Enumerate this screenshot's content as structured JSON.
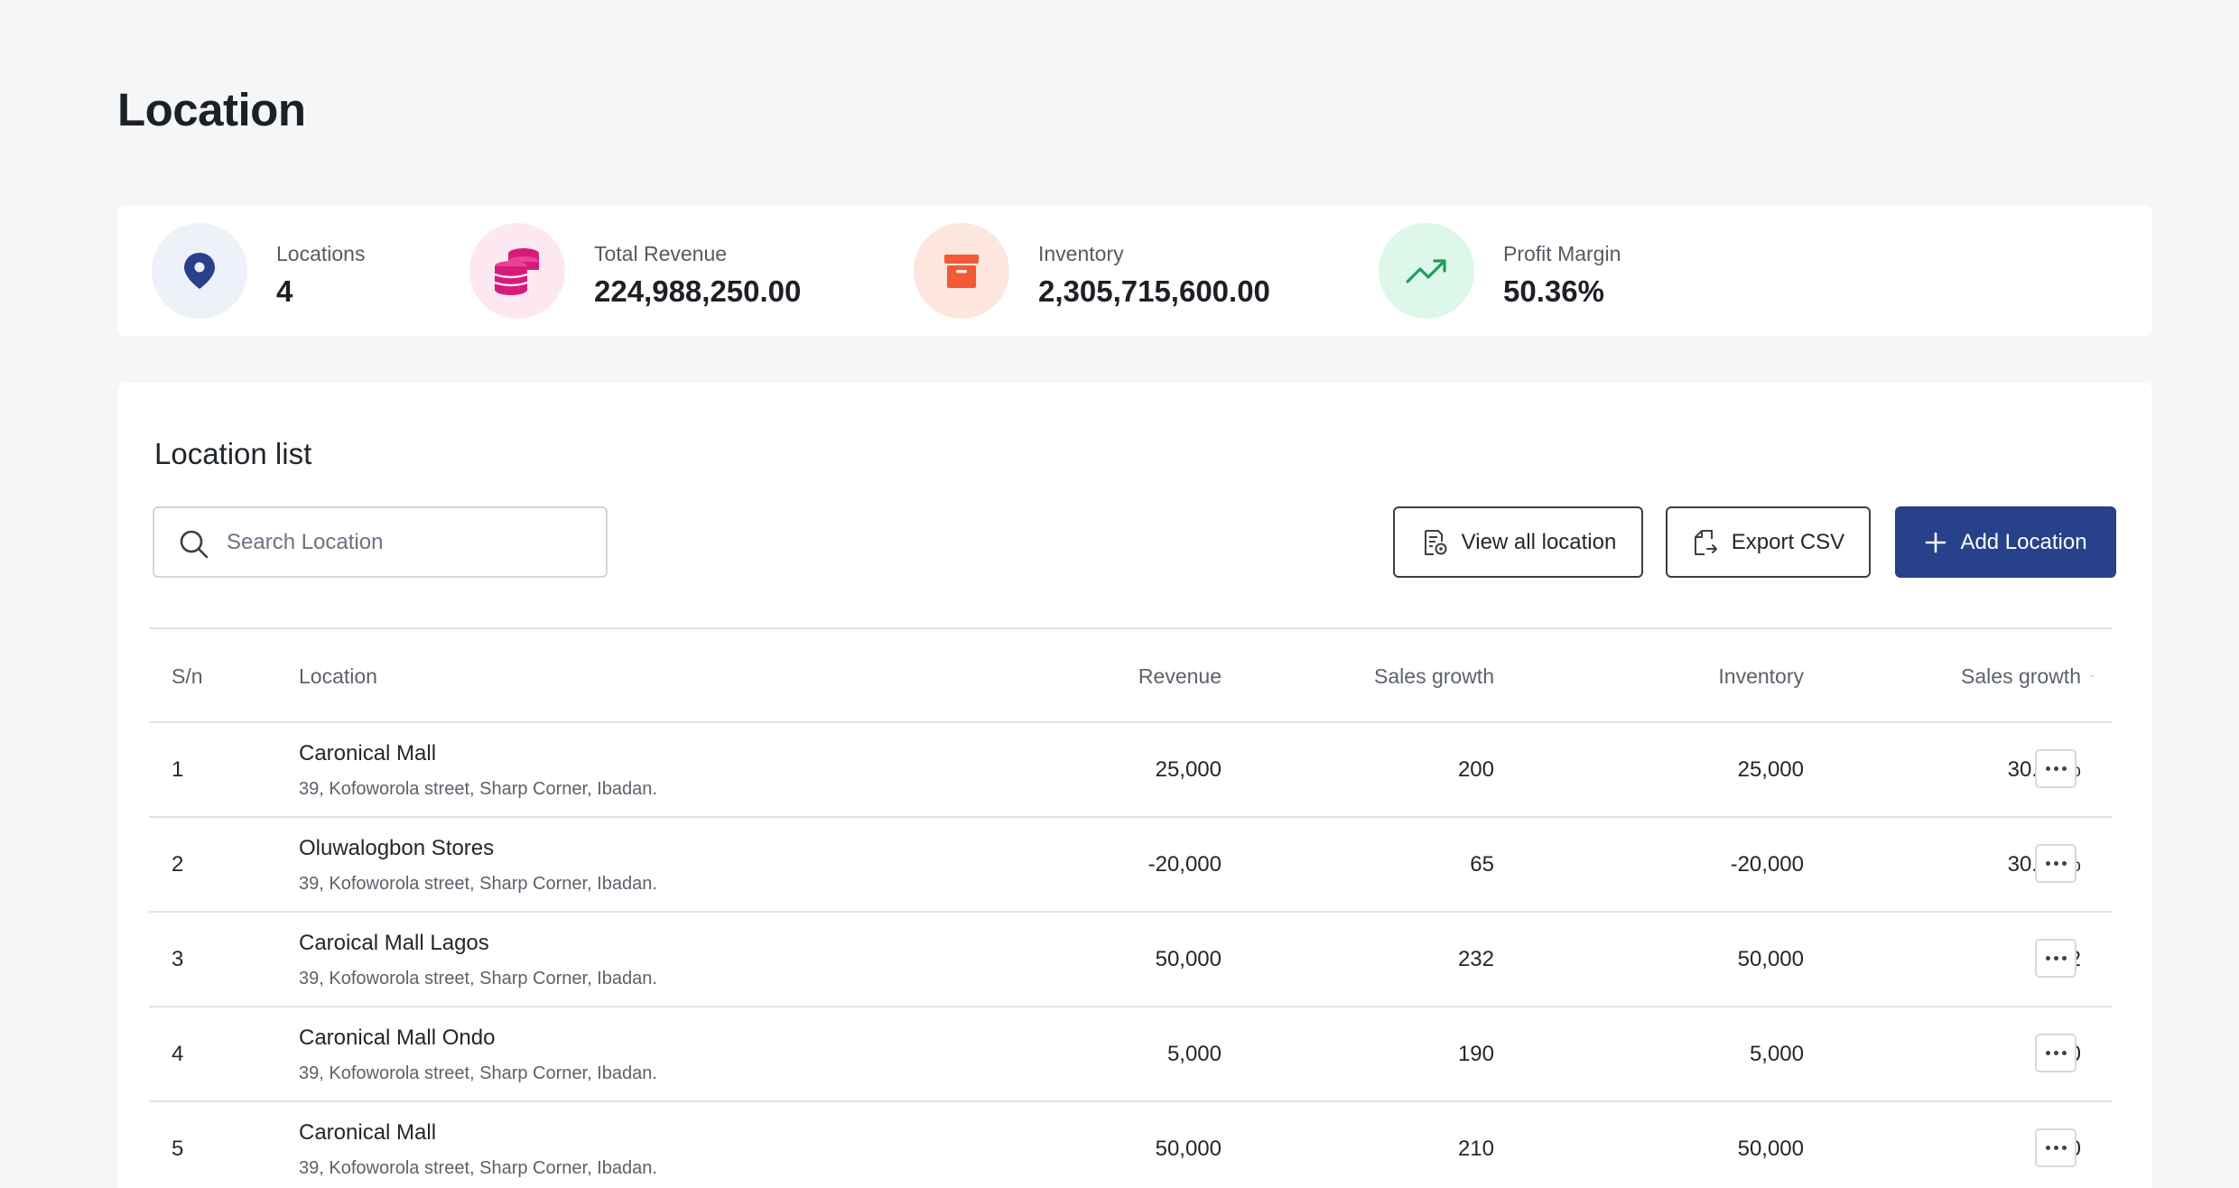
{
  "page": {
    "title": "Location"
  },
  "stats": [
    {
      "label": "Locations",
      "value": "4",
      "icon": "location-pin-icon",
      "icon_bg": "#eef1f7",
      "icon_color": "#27418a"
    },
    {
      "label": "Total Revenue",
      "value": "224,988,250.00",
      "icon": "coins-icon",
      "icon_bg": "#fde8f2",
      "icon_color": "#d81b7a"
    },
    {
      "label": "Inventory",
      "value": "2,305,715,600.00",
      "icon": "archive-box-icon",
      "icon_bg": "#fde6dd",
      "icon_color": "#f05a35"
    },
    {
      "label": "Profit Margin",
      "value": "50.36%",
      "icon": "trending-up-icon",
      "icon_bg": "#ddf7ea",
      "icon_color": "#1f9d5c"
    }
  ],
  "list": {
    "title": "Location list",
    "search": {
      "placeholder": "Search Location",
      "value": ""
    },
    "buttons": {
      "view_all": "View all location",
      "export": "Export CSV",
      "add": "Add Location"
    },
    "columns": {
      "sn": "S/n",
      "location": "Location",
      "revenue": "Revenue",
      "sales_growth": "Sales growth",
      "inventory": "Inventory",
      "sales_growth_2": "Sales growth",
      "actions": "-"
    },
    "rows": [
      {
        "sn": "1",
        "name": "Caronical Mall",
        "address": "39, Kofoworola street, Sharp Corner, Ibadan.",
        "revenue": "25,000",
        "sales_growth": "200",
        "inventory": "25,000",
        "sales_growth_2": "30.00%"
      },
      {
        "sn": "2",
        "name": "Oluwalogbon Stores",
        "address": "39, Kofoworola street, Sharp Corner, Ibadan.",
        "revenue": "-20,000",
        "sales_growth": "65",
        "inventory": "-20,000",
        "sales_growth_2": "30.45%"
      },
      {
        "sn": "3",
        "name": "Caroical Mall Lagos",
        "address": "39, Kofoworola street, Sharp Corner, Ibadan.",
        "revenue": "50,000",
        "sales_growth": "232",
        "inventory": "50,000",
        "sales_growth_2": "232"
      },
      {
        "sn": "4",
        "name": "Caronical Mall Ondo",
        "address": "39, Kofoworola street, Sharp Corner, Ibadan.",
        "revenue": "5,000",
        "sales_growth": "190",
        "inventory": "5,000",
        "sales_growth_2": "190"
      },
      {
        "sn": "5",
        "name": "Caronical Mall",
        "address": "39, Kofoworola street, Sharp Corner, Ibadan.",
        "revenue": "50,000",
        "sales_growth": "210",
        "inventory": "50,000",
        "sales_growth_2": "210"
      }
    ]
  },
  "colors": {
    "primary": "#27418a",
    "border": "#dfe2e6",
    "background": "#f4f6f8"
  }
}
